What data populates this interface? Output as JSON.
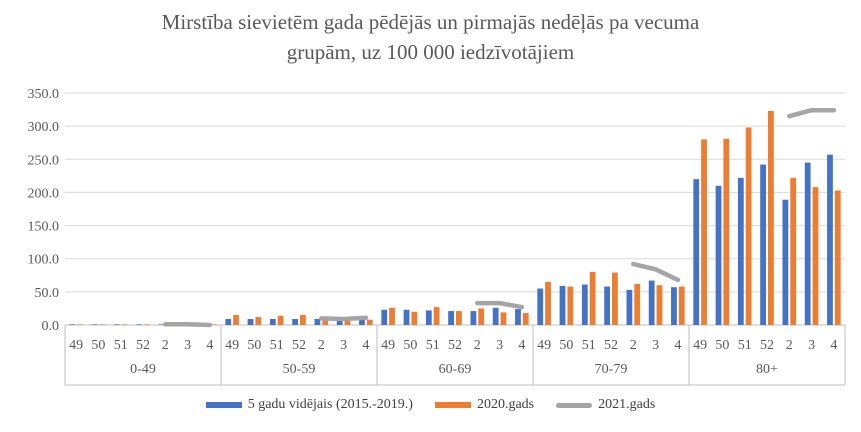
{
  "chart_data": {
    "type": "bar",
    "title_line1": "Mirstība sievietēm gada pēdējās un pirmajās nedēļās pa vecuma",
    "title_line2": "grupām, uz 100 000 iedzīvotājiem",
    "xlabel": "",
    "ylabel": "",
    "ylim": [
      0,
      350
    ],
    "yticks": [
      "0.0",
      "50.0",
      "100.0",
      "150.0",
      "200.0",
      "250.0",
      "300.0",
      "350.0"
    ],
    "grid": true,
    "legend_position": "bottom",
    "groups": [
      {
        "label": "0-49",
        "weeks": [
          "49",
          "50",
          "51",
          "52",
          "2",
          "3",
          "4"
        ]
      },
      {
        "label": "50-59",
        "weeks": [
          "49",
          "50",
          "51",
          "52",
          "2",
          "3",
          "4"
        ]
      },
      {
        "label": "60-69",
        "weeks": [
          "49",
          "50",
          "51",
          "52",
          "2",
          "3",
          "4"
        ]
      },
      {
        "label": "70-79",
        "weeks": [
          "49",
          "50",
          "51",
          "52",
          "2",
          "3",
          "4"
        ]
      },
      {
        "label": "80+",
        "weeks": [
          "49",
          "50",
          "51",
          "52",
          "2",
          "3",
          "4"
        ]
      }
    ],
    "series": [
      {
        "name": "5 gadu vidējais (2015.-2019.)",
        "type": "bar",
        "color": "#4472C4",
        "values": [
          [
            1,
            1,
            1,
            1,
            1,
            1,
            1
          ],
          [
            9,
            9,
            9,
            9,
            9,
            9,
            9
          ],
          [
            23,
            23,
            22,
            21,
            21,
            26,
            24
          ],
          [
            55,
            59,
            61,
            58,
            53,
            67,
            57
          ],
          [
            220,
            210,
            222,
            242,
            189,
            245,
            257
          ]
        ]
      },
      {
        "name": "2020.gads",
        "type": "bar",
        "color": "#ED7D31",
        "values": [
          [
            1,
            1,
            1,
            1,
            1,
            1,
            1
          ],
          [
            15,
            12,
            14,
            15,
            9,
            10,
            8
          ],
          [
            26,
            20,
            27,
            21,
            25,
            19,
            18
          ],
          [
            65,
            58,
            80,
            79,
            62,
            60,
            58
          ],
          [
            280,
            281,
            298,
            323,
            222,
            208,
            203
          ]
        ]
      },
      {
        "name": "2021.gads",
        "type": "line",
        "color": "#A5A5A5",
        "values": [
          [
            null,
            null,
            null,
            null,
            1,
            1,
            0
          ],
          [
            null,
            null,
            null,
            null,
            10,
            9,
            11
          ],
          [
            null,
            null,
            null,
            null,
            33,
            33,
            27
          ],
          [
            null,
            null,
            null,
            null,
            92,
            84,
            68
          ],
          [
            null,
            null,
            null,
            null,
            315,
            324,
            324
          ]
        ]
      }
    ]
  }
}
